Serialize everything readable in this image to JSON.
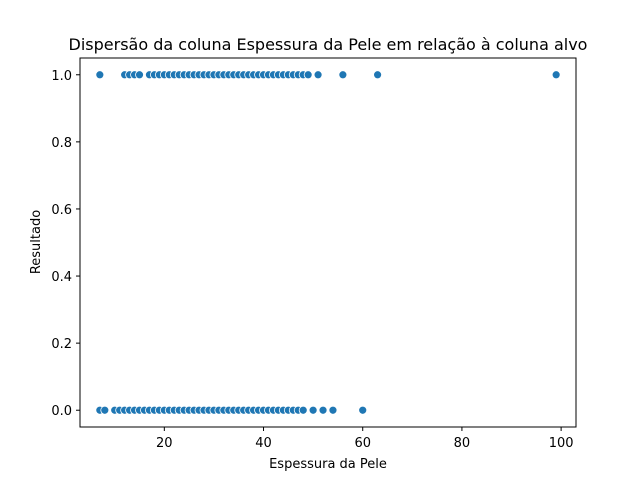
{
  "chart_data": {
    "type": "scatter",
    "title": "Dispersão da coluna Espessura da Pele em relação à coluna alvo",
    "xlabel": "Espessura da Pele",
    "ylabel": "Resultado",
    "xlim": [
      3,
      103
    ],
    "ylim": [
      -0.05,
      1.05
    ],
    "xticks": [
      20,
      40,
      60,
      80,
      100
    ],
    "yticks": [
      0.0,
      0.2,
      0.4,
      0.6,
      0.8,
      1.0
    ],
    "xtick_labels": [
      "20",
      "40",
      "60",
      "80",
      "100"
    ],
    "ytick_labels": [
      "0.0",
      "0.2",
      "0.4",
      "0.6",
      "0.8",
      "1.0"
    ],
    "grid": false,
    "marker_color": "#1f77b4",
    "series": [
      {
        "y": 1,
        "x": [
          7,
          12,
          13,
          14,
          15,
          17,
          18,
          19,
          20,
          21,
          22,
          23,
          24,
          25,
          26,
          27,
          28,
          29,
          30,
          31,
          32,
          33,
          34,
          35,
          36,
          37,
          38,
          39,
          40,
          41,
          42,
          43,
          44,
          45,
          46,
          47,
          48,
          49,
          51,
          56,
          63,
          99
        ]
      },
      {
        "y": 0,
        "x": [
          7,
          8,
          10,
          11,
          12,
          13,
          14,
          15,
          16,
          17,
          18,
          19,
          20,
          21,
          22,
          23,
          24,
          25,
          26,
          27,
          28,
          29,
          30,
          31,
          32,
          33,
          34,
          35,
          36,
          37,
          38,
          39,
          40,
          41,
          42,
          43,
          44,
          45,
          46,
          47,
          48,
          50,
          52,
          54,
          60
        ]
      }
    ]
  }
}
